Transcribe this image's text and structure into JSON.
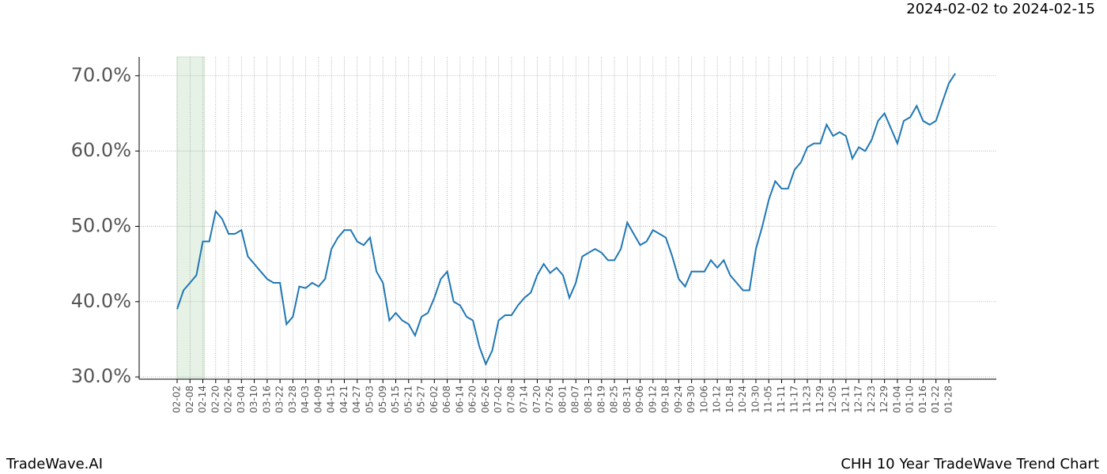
{
  "chart_data": {
    "type": "line",
    "subtitle": "2024-02-02 to 2024-02-15",
    "brand": "TradeWave.AI",
    "title": "CHH 10 Year TradeWave Trend Chart",
    "highlight": {
      "start": "02-02",
      "end": "02-14",
      "color": "#e6f2e6"
    },
    "categories": [
      "02-02",
      null,
      "02-08",
      null,
      "02-14",
      null,
      "02-20",
      null,
      "02-26",
      null,
      "03-04",
      null,
      "03-10",
      null,
      "03-16",
      null,
      "03-22",
      null,
      "03-28",
      null,
      "04-03",
      null,
      "04-09",
      null,
      "04-15",
      null,
      "04-21",
      null,
      "04-27",
      null,
      "05-03",
      null,
      "05-09",
      null,
      "05-15",
      null,
      "05-21",
      null,
      "05-27",
      null,
      "06-02",
      null,
      "06-08",
      null,
      "06-14",
      null,
      "06-20",
      null,
      "06-26",
      null,
      "07-02",
      null,
      "07-08",
      null,
      "07-14",
      null,
      "07-20",
      null,
      "07-26",
      null,
      "08-01",
      null,
      "08-07",
      null,
      "08-13",
      null,
      "08-19",
      null,
      "08-25",
      null,
      "08-31",
      null,
      "09-06",
      null,
      "09-12",
      null,
      "09-18",
      null,
      "09-24",
      null,
      "09-30",
      null,
      "10-06",
      null,
      "10-12",
      null,
      "10-18",
      null,
      "10-24",
      null,
      "10-30",
      null,
      "11-05",
      null,
      "11-11",
      null,
      "11-17",
      null,
      "11-23",
      null,
      "11-29",
      null,
      "12-05",
      null,
      "12-11",
      null,
      "12-17",
      null,
      "12-23",
      null,
      "12-29",
      null,
      "01-04",
      null,
      "01-10",
      null,
      "01-16",
      null,
      "01-22",
      null,
      "01-28",
      null
    ],
    "series": [
      {
        "color": "#1f77b4",
        "values": [
          39.0,
          41.5,
          42.5,
          43.5,
          48,
          48,
          52,
          51,
          49,
          49,
          49.5,
          46,
          45,
          44,
          43,
          42.5,
          42.5,
          37,
          38,
          42,
          41.8,
          42.5,
          42,
          43,
          47,
          48.5,
          49.5,
          49.5,
          48,
          47.5,
          48.5,
          44,
          42.5,
          37.5,
          38.5,
          37.5,
          37,
          35.5,
          38,
          38.5,
          40.5,
          43,
          44,
          40,
          39.5,
          38,
          37.5,
          34,
          31.7,
          33.5,
          37.5,
          38.2,
          38.2,
          39.5,
          40.5,
          41.2,
          43.5,
          45,
          43.8,
          44.5,
          43.5,
          40.5,
          42.5,
          46,
          46.5,
          47,
          46.5,
          45.5,
          45.5,
          47,
          50.5,
          49,
          47.5,
          48,
          49.5,
          49,
          48.5,
          46,
          43,
          42,
          44,
          44,
          44,
          45.5,
          44.5,
          45.5,
          43.5,
          42.5,
          41.5,
          41.5,
          47,
          50,
          53.5,
          56,
          55,
          55,
          57.5,
          58.5,
          60.5,
          61,
          61,
          63.5,
          62,
          62.5,
          62,
          59,
          60.5,
          60,
          61.5,
          64,
          65,
          63,
          61,
          64,
          64.5,
          66,
          64,
          63.5,
          64,
          66.5,
          69,
          70.3
        ]
      }
    ],
    "ylim": [
      29.7,
      72.5
    ],
    "yticks": [
      {
        "value": 30,
        "label": "30.0%"
      },
      {
        "value": 40,
        "label": "40.0%"
      },
      {
        "value": 50,
        "label": "50.0%"
      },
      {
        "value": 60,
        "label": "60.0%"
      },
      {
        "value": 70,
        "label": "70.0%"
      }
    ],
    "grid": true
  }
}
